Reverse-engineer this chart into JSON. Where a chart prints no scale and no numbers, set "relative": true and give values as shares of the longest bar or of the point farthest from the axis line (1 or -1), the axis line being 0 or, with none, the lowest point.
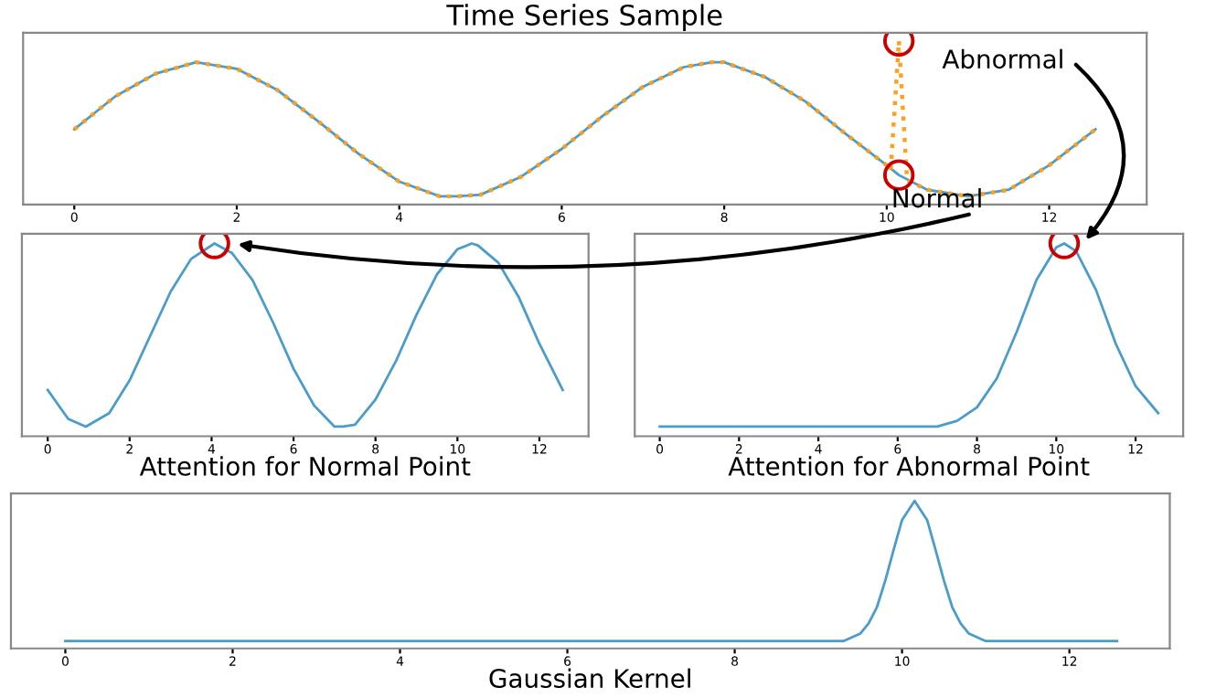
{
  "chart_data": [
    {
      "type": "line",
      "title": "Time Series Sample",
      "relative": true,
      "xlim": [
        -0.63,
        13.2
      ],
      "xticks": [
        0,
        2,
        4,
        6,
        8,
        10,
        12
      ],
      "grid": false,
      "legend": false,
      "series": [
        {
          "color": "#4a9ccb",
          "line_style": "solid",
          "x": [
            0,
            0.5,
            1,
            1.5,
            2,
            2.5,
            3,
            3.5,
            4,
            4.5,
            4.71,
            5,
            5.5,
            6,
            6.5,
            7,
            7.5,
            7.85,
            8,
            8.5,
            9,
            9.5,
            10,
            10.15,
            10.5,
            11,
            11.5,
            12,
            12.57
          ],
          "values": [
            0.46,
            0.66,
            0.8,
            0.87,
            0.83,
            0.7,
            0.51,
            0.31,
            0.14,
            0.05,
            0.05,
            0.06,
            0.17,
            0.34,
            0.54,
            0.72,
            0.84,
            0.87,
            0.87,
            0.78,
            0.63,
            0.43,
            0.24,
            0.18,
            0.09,
            0.05,
            0.09,
            0.24,
            0.46
          ]
        },
        {
          "color": "#ff9f1c",
          "line_style": "dotted",
          "x": [
            0,
            0.5,
            1,
            1.5,
            2,
            2.5,
            3,
            3.5,
            4,
            4.5,
            4.71,
            5,
            5.5,
            6,
            6.5,
            7,
            7.5,
            7.85,
            8,
            8.5,
            9,
            9.5,
            10,
            10.05,
            10.15,
            10.25,
            10.5,
            11,
            11.5,
            12,
            12.57
          ],
          "values": [
            0.46,
            0.66,
            0.8,
            0.87,
            0.83,
            0.7,
            0.51,
            0.31,
            0.14,
            0.05,
            0.05,
            0.06,
            0.17,
            0.34,
            0.54,
            0.72,
            0.84,
            0.87,
            0.87,
            0.78,
            0.63,
            0.43,
            0.24,
            0.21,
            1,
            0.15,
            0.09,
            0.05,
            0.09,
            0.24,
            0.46
          ]
        }
      ],
      "annotations": [
        {
          "text": "Abnormal",
          "x": 10.15,
          "y": 1
        },
        {
          "text": "Normal",
          "x": 10.15,
          "y": 0.18
        }
      ]
    },
    {
      "type": "line",
      "xlabel": "Attention for Normal Point",
      "relative": true,
      "xlim": [
        -0.63,
        13.2
      ],
      "xticks": [
        0,
        2,
        4,
        6,
        8,
        10,
        12
      ],
      "grid": false,
      "legend": false,
      "series": [
        {
          "color": "#4a9ccb",
          "x": [
            0,
            0.5,
            0.93,
            1.5,
            2,
            2.5,
            3,
            3.5,
            4.07,
            4.5,
            5,
            5.5,
            6,
            6.5,
            7,
            7.21,
            7.5,
            8,
            8.5,
            9,
            9.5,
            10,
            10.35,
            10.5,
            11,
            11.5,
            12,
            12.57
          ],
          "values": [
            0.24,
            0.09,
            0.05,
            0.12,
            0.29,
            0.52,
            0.75,
            0.92,
            1,
            0.95,
            0.81,
            0.59,
            0.35,
            0.16,
            0.05,
            0.05,
            0.06,
            0.19,
            0.39,
            0.63,
            0.84,
            0.97,
            1,
            0.99,
            0.9,
            0.72,
            0.48,
            0.24
          ]
        }
      ]
    },
    {
      "type": "line",
      "xlabel": "Attention for Abnormal Point",
      "relative": true,
      "xlim": [
        -0.63,
        13.2
      ],
      "xticks": [
        0,
        2,
        4,
        6,
        8,
        10,
        12
      ],
      "grid": false,
      "legend": false,
      "series": [
        {
          "color": "#4a9ccb",
          "x": [
            0,
            1,
            2,
            3,
            4,
            5,
            6,
            6.5,
            7,
            7.5,
            8,
            8.5,
            9,
            9.5,
            10,
            10.2,
            10.5,
            11,
            11.5,
            12,
            12.57
          ],
          "values": [
            0.05,
            0.05,
            0.05,
            0.05,
            0.05,
            0.05,
            0.05,
            0.05,
            0.05,
            0.08,
            0.15,
            0.3,
            0.54,
            0.81,
            0.98,
            1,
            0.96,
            0.76,
            0.48,
            0.26,
            0.12
          ]
        }
      ]
    },
    {
      "type": "line",
      "xlabel": "Gaussian Kernel",
      "relative": true,
      "xlim": [
        -0.65,
        13.2
      ],
      "xticks": [
        0,
        2,
        4,
        6,
        8,
        10,
        12
      ],
      "grid": false,
      "legend": false,
      "series": [
        {
          "color": "#4a9ccb",
          "x": [
            0,
            9,
            9.3,
            9.5,
            9.6,
            9.7,
            9.8,
            9.9,
            10,
            10.15,
            10.3,
            10.4,
            10.5,
            10.6,
            10.7,
            10.8,
            11,
            11.3,
            12.57
          ],
          "values": [
            0.05,
            0.05,
            0.05,
            0.1,
            0.17,
            0.28,
            0.46,
            0.67,
            0.87,
            1,
            0.87,
            0.67,
            0.46,
            0.28,
            0.17,
            0.1,
            0.05,
            0.05,
            0.05
          ]
        }
      ]
    }
  ]
}
